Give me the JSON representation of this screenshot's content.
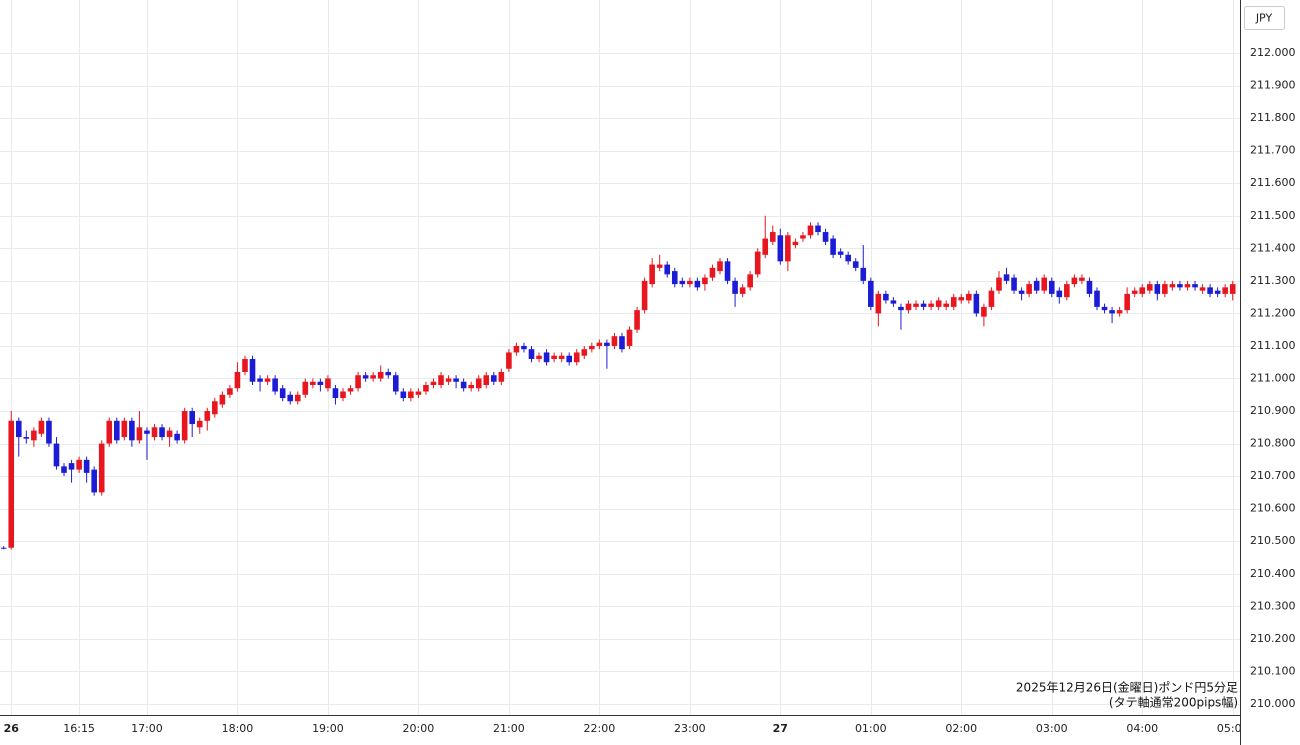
{
  "chart_data": {
    "type": "candlestick",
    "currency": "JPY",
    "annotation": [
      "2025年12月26日(金曜日)ポンド円5分足",
      "(タテ軸通常200pips幅)"
    ],
    "up_color": "#e8161f",
    "down_color": "#1c1cd6",
    "grid": true,
    "ylim": [
      209.966,
      212.163
    ],
    "yticks": [
      {
        "value": 210,
        "label": "210.000"
      },
      {
        "value": 210.1,
        "label": "210.100"
      },
      {
        "value": 210.2,
        "label": "210.200"
      },
      {
        "value": 210.3,
        "label": "210.300"
      },
      {
        "value": 210.4,
        "label": "210.400"
      },
      {
        "value": 210.5,
        "label": "210.500"
      },
      {
        "value": 210.6,
        "label": "210.600"
      },
      {
        "value": 210.7,
        "label": "210.700"
      },
      {
        "value": 210.8,
        "label": "210.800"
      },
      {
        "value": 210.9,
        "label": "210.900"
      },
      {
        "value": 211,
        "label": "211.000"
      },
      {
        "value": 211.1,
        "label": "211.100"
      },
      {
        "value": 211.2,
        "label": "211.200"
      },
      {
        "value": 211.3,
        "label": "211.300"
      },
      {
        "value": 211.4,
        "label": "211.400"
      },
      {
        "value": 211.5,
        "label": "211.500"
      },
      {
        "value": 211.6,
        "label": "211.600"
      },
      {
        "value": 211.7,
        "label": "211.700"
      },
      {
        "value": 211.8,
        "label": "211.800"
      },
      {
        "value": 211.9,
        "label": "211.900"
      },
      {
        "value": 212,
        "label": "212.000"
      }
    ],
    "categories": [
      null,
      "26",
      null,
      null,
      null,
      null,
      null,
      null,
      null,
      null,
      "16:15",
      null,
      null,
      null,
      null,
      null,
      null,
      null,
      null,
      "17:00",
      null,
      null,
      null,
      null,
      null,
      null,
      null,
      null,
      null,
      null,
      null,
      "18:00",
      null,
      null,
      null,
      null,
      null,
      null,
      null,
      null,
      null,
      null,
      null,
      "19:00",
      null,
      null,
      null,
      null,
      null,
      null,
      null,
      null,
      null,
      null,
      null,
      "20:00",
      null,
      null,
      null,
      null,
      null,
      null,
      null,
      null,
      null,
      null,
      null,
      "21:00",
      null,
      null,
      null,
      null,
      null,
      null,
      null,
      null,
      null,
      null,
      null,
      "22:00",
      null,
      null,
      null,
      null,
      null,
      null,
      null,
      null,
      null,
      null,
      null,
      "23:00",
      null,
      null,
      null,
      null,
      null,
      null,
      null,
      null,
      null,
      null,
      null,
      "27",
      null,
      null,
      null,
      null,
      null,
      null,
      null,
      null,
      null,
      null,
      null,
      "01:00",
      null,
      null,
      null,
      null,
      null,
      null,
      null,
      null,
      null,
      null,
      null,
      "02:00",
      null,
      null,
      null,
      null,
      null,
      null,
      null,
      null,
      null,
      null,
      null,
      "03:00",
      null,
      null,
      null,
      null,
      null,
      null,
      null,
      null,
      null,
      null,
      null,
      "04:00",
      null,
      null,
      null,
      null,
      null,
      null,
      null,
      null,
      null,
      null,
      null,
      "05:00"
    ],
    "open": [
      210.48,
      210.48,
      210.87,
      210.82,
      210.81,
      210.83,
      210.87,
      210.8,
      210.73,
      210.74,
      210.72,
      210.75,
      210.72,
      210.65,
      210.8,
      210.87,
      210.82,
      210.87,
      210.81,
      210.84,
      210.82,
      210.85,
      210.82,
      210.83,
      210.81,
      210.9,
      210.85,
      210.87,
      210.89,
      210.92,
      210.95,
      210.97,
      211.02,
      211.06,
      211.0,
      210.99,
      211.0,
      210.97,
      210.95,
      210.93,
      210.95,
      210.98,
      210.99,
      210.97,
      210.97,
      210.94,
      210.96,
      210.97,
      211.01,
      211.0,
      211.0,
      211.02,
      211.01,
      210.96,
      210.94,
      210.95,
      210.96,
      210.98,
      210.98,
      210.99,
      211.0,
      210.99,
      210.97,
      210.97,
      210.98,
      211.01,
      210.99,
      211.03,
      211.08,
      211.1,
      211.09,
      211.06,
      211.08,
      211.06,
      211.06,
      211.07,
      211.05,
      211.07,
      211.09,
      211.1,
      211.11,
      211.1,
      211.13,
      211.1,
      211.15,
      211.21,
      211.29,
      211.34,
      211.35,
      211.33,
      211.3,
      211.29,
      211.3,
      211.29,
      211.31,
      211.33,
      211.36,
      211.3,
      211.26,
      211.28,
      211.32,
      211.38,
      211.42,
      211.44,
      211.36,
      211.41,
      211.43,
      211.44,
      211.47,
      211.45,
      211.43,
      211.39,
      211.38,
      211.36,
      211.34,
      211.3,
      211.2,
      211.26,
      211.24,
      211.22,
      211.21,
      211.22,
      211.23,
      211.22,
      211.22,
      211.22,
      211.22,
      211.24,
      211.24,
      211.26,
      211.19,
      211.22,
      211.27,
      211.32,
      211.31,
      211.27,
      211.26,
      211.3,
      211.27,
      211.3,
      211.27,
      211.25,
      211.29,
      211.3,
      211.3,
      211.27,
      211.22,
      211.21,
      211.2,
      211.21,
      211.26,
      211.26,
      211.27,
      211.29,
      211.26,
      211.28,
      211.29,
      211.28,
      211.29,
      211.27,
      211.28,
      211.27,
      211.26,
      211.26
    ],
    "high": [
      210.485,
      210.9,
      210.88,
      210.84,
      210.85,
      210.88,
      210.88,
      210.82,
      210.74,
      210.75,
      210.76,
      210.76,
      210.73,
      210.81,
      210.88,
      210.88,
      210.88,
      210.88,
      210.9,
      210.85,
      210.86,
      210.86,
      210.85,
      210.84,
      210.91,
      210.91,
      210.88,
      210.91,
      210.94,
      210.96,
      210.98,
      211.05,
      211.07,
      211.07,
      211.01,
      211.01,
      211.01,
      210.98,
      210.96,
      210.96,
      211.0,
      211.0,
      211.0,
      211.01,
      210.98,
      210.97,
      210.98,
      211.02,
      211.02,
      211.02,
      211.04,
      211.03,
      211.02,
      210.97,
      210.97,
      210.97,
      210.99,
      211.0,
      211.02,
      211.01,
      211.01,
      211.0,
      210.99,
      211.01,
      211.02,
      211.02,
      211.03,
      211.09,
      211.11,
      211.11,
      211.1,
      211.08,
      211.09,
      211.08,
      211.08,
      211.08,
      211.09,
      211.1,
      211.11,
      211.12,
      211.12,
      211.14,
      211.14,
      211.16,
      211.22,
      211.31,
      211.37,
      211.38,
      211.36,
      211.34,
      211.31,
      211.31,
      211.31,
      211.32,
      211.35,
      211.37,
      211.37,
      211.31,
      211.29,
      211.33,
      211.4,
      211.5,
      211.47,
      211.46,
      211.45,
      211.43,
      211.45,
      211.48,
      211.48,
      211.46,
      211.44,
      211.4,
      211.39,
      211.37,
      211.41,
      211.31,
      211.27,
      211.27,
      211.25,
      211.23,
      211.24,
      211.24,
      211.24,
      211.24,
      211.25,
      211.24,
      211.26,
      211.26,
      211.27,
      211.27,
      211.23,
      211.28,
      211.33,
      211.34,
      211.32,
      211.28,
      211.3,
      211.31,
      211.32,
      211.31,
      211.28,
      211.3,
      211.32,
      211.32,
      211.31,
      211.28,
      211.23,
      211.22,
      211.22,
      211.28,
      211.28,
      211.29,
      211.3,
      211.3,
      211.3,
      211.3,
      211.3,
      211.3,
      211.3,
      211.29,
      211.29,
      211.28,
      211.29,
      211.3
    ],
    "low": [
      210.475,
      210.475,
      210.76,
      210.8,
      210.79,
      210.82,
      210.79,
      210.72,
      210.7,
      210.68,
      210.71,
      210.68,
      210.64,
      210.64,
      210.79,
      210.8,
      210.81,
      210.79,
      210.8,
      210.75,
      210.81,
      210.81,
      210.79,
      210.8,
      210.8,
      210.82,
      210.83,
      210.84,
      210.88,
      210.91,
      210.94,
      210.96,
      211.01,
      210.98,
      210.96,
      210.98,
      210.95,
      210.93,
      210.92,
      210.92,
      210.94,
      210.97,
      210.96,
      210.96,
      210.92,
      210.93,
      210.95,
      210.96,
      210.99,
      210.99,
      210.99,
      211.0,
      210.95,
      210.93,
      210.93,
      210.94,
      210.95,
      210.97,
      210.97,
      210.98,
      210.97,
      210.96,
      210.96,
      210.96,
      210.97,
      210.98,
      210.98,
      211.02,
      211.07,
      211.08,
      211.05,
      211.05,
      211.04,
      211.05,
      211.05,
      211.04,
      211.04,
      211.06,
      211.08,
      211.09,
      211.03,
      211.09,
      211.08,
      211.09,
      211.14,
      211.2,
      211.28,
      211.33,
      211.31,
      211.28,
      211.28,
      211.28,
      211.27,
      211.27,
      211.3,
      211.32,
      211.29,
      211.22,
      211.25,
      211.27,
      211.31,
      211.37,
      211.41,
      211.35,
      211.33,
      211.4,
      211.42,
      211.43,
      211.44,
      211.41,
      211.37,
      211.37,
      211.35,
      211.33,
      211.29,
      211.21,
      211.16,
      211.23,
      211.22,
      211.15,
      211.2,
      211.21,
      211.21,
      211.21,
      211.21,
      211.21,
      211.21,
      211.23,
      211.23,
      211.19,
      211.16,
      211.21,
      211.26,
      211.29,
      211.26,
      211.24,
      211.25,
      211.26,
      211.26,
      211.25,
      211.23,
      211.24,
      211.28,
      211.29,
      211.25,
      211.21,
      211.2,
      211.17,
      211.19,
      211.2,
      211.25,
      211.25,
      211.26,
      211.24,
      211.25,
      211.27,
      211.27,
      211.27,
      211.27,
      211.26,
      211.25,
      211.25,
      211.25,
      211.24
    ],
    "close": [
      210.478,
      210.87,
      210.82,
      210.815,
      210.84,
      210.87,
      210.8,
      210.73,
      210.71,
      210.72,
      210.75,
      210.71,
      210.65,
      210.8,
      210.87,
      210.81,
      210.87,
      210.81,
      210.85,
      210.83,
      210.85,
      210.82,
      210.84,
      210.81,
      210.9,
      210.86,
      210.87,
      210.9,
      210.93,
      210.95,
      210.97,
      211.02,
      211.06,
      210.99,
      210.99,
      211.0,
      210.96,
      210.94,
      210.93,
      210.95,
      210.99,
      210.99,
      210.98,
      211.0,
      210.94,
      210.96,
      210.97,
      211.01,
      211.0,
      211.01,
      211.02,
      211.01,
      210.96,
      210.94,
      210.96,
      210.96,
      210.98,
      210.99,
      211.01,
      211.0,
      210.99,
      210.97,
      210.98,
      211.0,
      211.01,
      210.99,
      211.02,
      211.08,
      211.1,
      211.09,
      211.06,
      211.07,
      211.05,
      211.07,
      211.07,
      211.05,
      211.08,
      211.09,
      211.1,
      211.11,
      211.1,
      211.13,
      211.09,
      211.15,
      211.21,
      211.3,
      211.35,
      211.35,
      211.32,
      211.29,
      211.29,
      211.3,
      211.28,
      211.31,
      211.34,
      211.36,
      211.3,
      211.26,
      211.28,
      211.32,
      211.39,
      211.43,
      211.45,
      211.36,
      211.44,
      211.42,
      211.44,
      211.47,
      211.45,
      211.42,
      211.38,
      211.38,
      211.36,
      211.34,
      211.3,
      211.22,
      211.26,
      211.24,
      211.23,
      211.21,
      211.23,
      211.23,
      211.22,
      211.23,
      211.24,
      211.23,
      211.25,
      211.25,
      211.26,
      211.2,
      211.22,
      211.27,
      211.31,
      211.3,
      211.27,
      211.26,
      211.29,
      211.27,
      211.31,
      211.26,
      211.25,
      211.29,
      211.31,
      211.31,
      211.26,
      211.22,
      211.21,
      211.2,
      211.21,
      211.26,
      211.27,
      211.28,
      211.29,
      211.26,
      211.29,
      211.29,
      211.28,
      211.29,
      211.28,
      211.28,
      211.26,
      211.26,
      211.28,
      211.29
    ]
  }
}
